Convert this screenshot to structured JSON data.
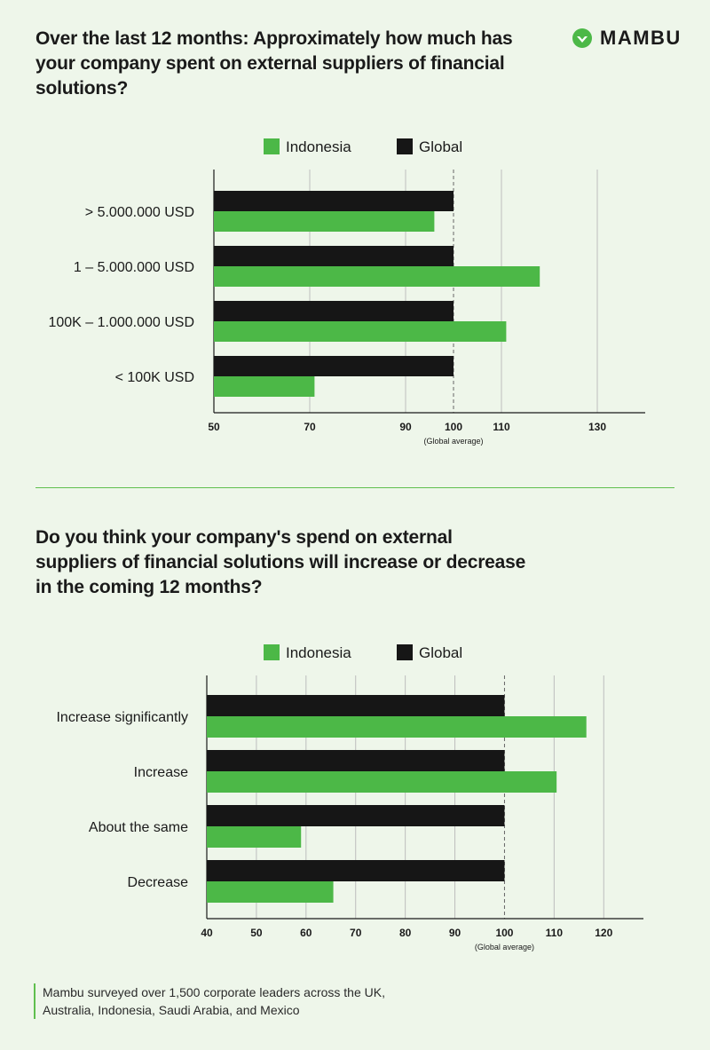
{
  "brand": {
    "name": "MAMBU",
    "accent": "#4cb847",
    "dark": "#161616"
  },
  "footnote": "Mambu surveyed over 1,500 corporate leaders across the UK, Australia, Indonesia, Saudi Arabia, and Mexico",
  "chart_data": [
    {
      "type": "bar",
      "orientation": "horizontal",
      "title": "Over the last 12 months: Approximately how much has your company spent on external suppliers of financial solutions?",
      "categories": [
        "> 5.000.000 USD",
        "1 – 5.000.000 USD",
        "100K – 1.000.000 USD",
        "< 100K USD"
      ],
      "series": [
        {
          "name": "Global",
          "color": "#161616",
          "values": [
            100,
            100,
            100,
            100
          ]
        },
        {
          "name": "Indonesia",
          "color": "#4cb847",
          "values": [
            96,
            118,
            111,
            71
          ]
        }
      ],
      "legend_order": [
        "Indonesia",
        "Global"
      ],
      "xlim": [
        50,
        140
      ],
      "xticks": [
        50,
        70,
        90,
        100,
        110,
        130
      ],
      "reference_line": {
        "value": 100,
        "label": "(Global average)"
      },
      "grid": true,
      "legend": "top"
    },
    {
      "type": "bar",
      "orientation": "horizontal",
      "title": "Do you think your company's spend on external suppliers of financial solutions will increase or decrease in the coming 12 months?",
      "categories": [
        "Increase significantly",
        "Increase",
        "About the same",
        "Decrease"
      ],
      "series": [
        {
          "name": "Global",
          "color": "#161616",
          "values": [
            100,
            100,
            100,
            100
          ]
        },
        {
          "name": "Indonesia",
          "color": "#4cb847",
          "values": [
            116.5,
            110.5,
            59,
            65.5
          ]
        }
      ],
      "legend_order": [
        "Indonesia",
        "Global"
      ],
      "xlim": [
        40,
        128
      ],
      "xticks": [
        40,
        50,
        60,
        70,
        80,
        90,
        100,
        110,
        120
      ],
      "reference_line": {
        "value": 100,
        "label": "(Global average)"
      },
      "grid": true,
      "legend": "top"
    }
  ]
}
